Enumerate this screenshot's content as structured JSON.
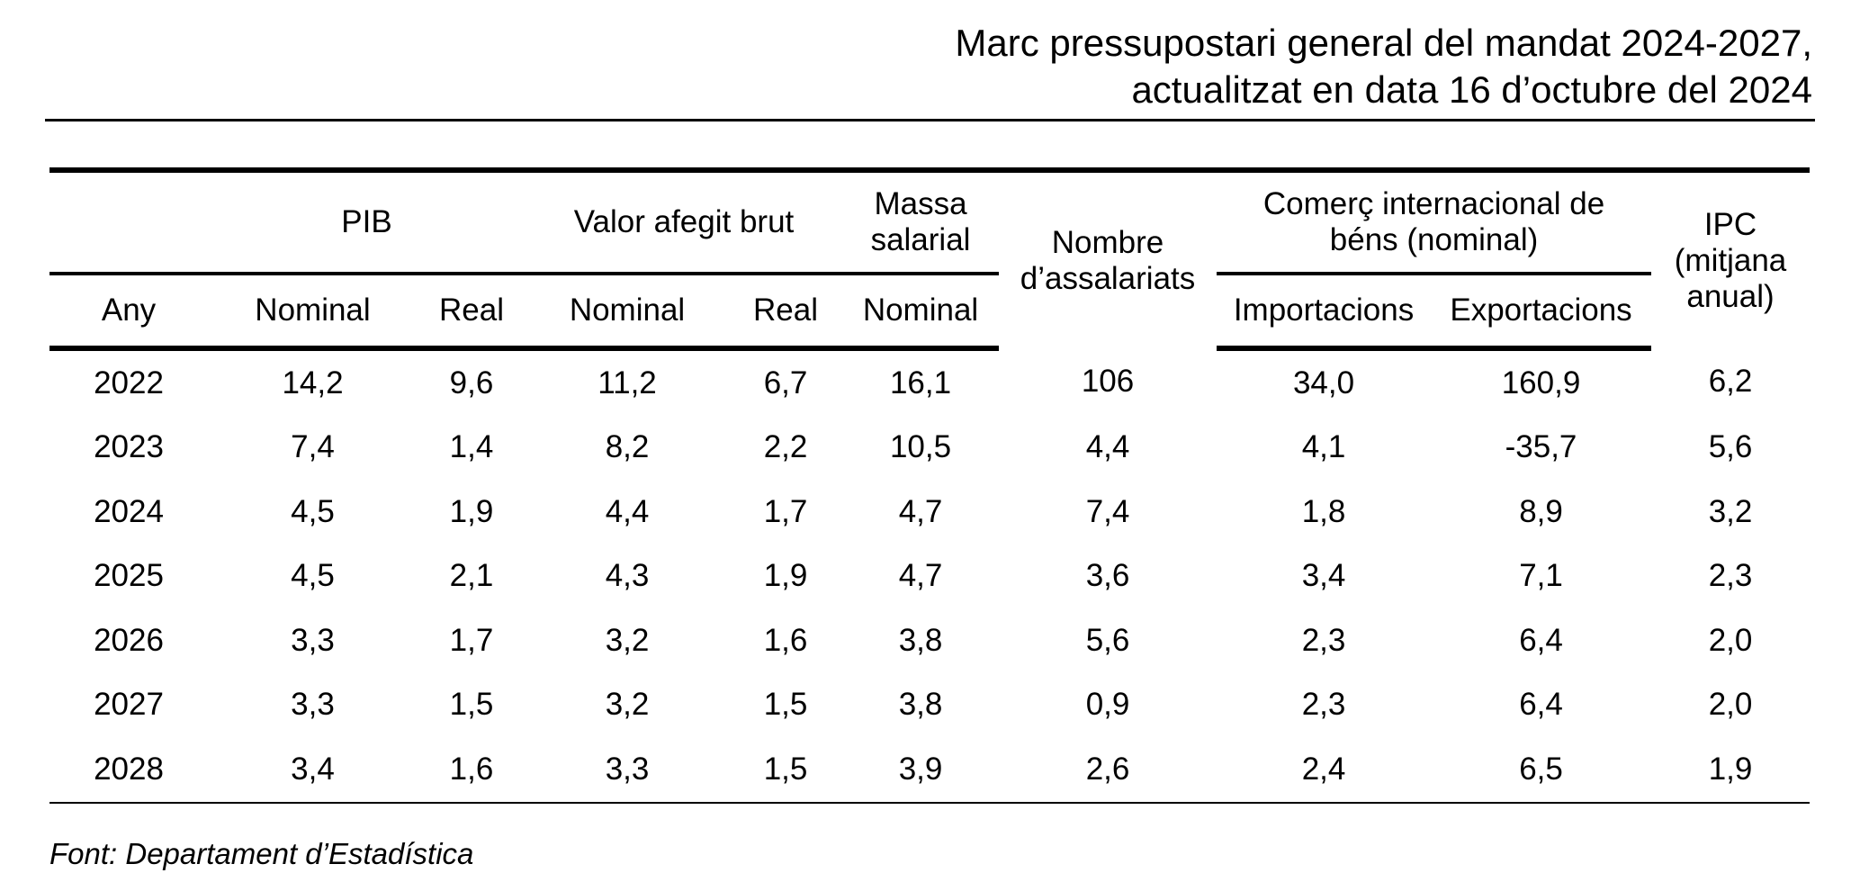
{
  "title": {
    "line1": "Marc pressupostari general del mandat 2024-2027,",
    "line2": "actualitzat en data 16 d’octubre del 2024"
  },
  "table": {
    "groups": {
      "pib": "PIB",
      "vab": "Valor afegit brut",
      "massa_1": "Massa",
      "massa_2": "salarial",
      "nombre_1": "Nombre",
      "nombre_2": "d’assalariats",
      "comerc_1": "Comerç internacional de",
      "comerc_2": "béns (nominal)",
      "ipc_1": "IPC",
      "ipc_2": "(mitjana",
      "ipc_3": "anual)"
    },
    "subheaders": [
      "Any",
      "Nominal",
      "Real",
      "Nominal",
      "Real",
      "Nominal",
      "Importacions",
      "Exportacions"
    ],
    "rows": [
      [
        "2022",
        "14,2",
        "9,6",
        "11,2",
        "6,7",
        "16,1",
        "106",
        "34,0",
        "160,9",
        "6,2"
      ],
      [
        "2023",
        "7,4",
        "1,4",
        "8,2",
        "2,2",
        "10,5",
        "4,4",
        "4,1",
        "-35,7",
        "5,6"
      ],
      [
        "2024",
        "4,5",
        "1,9",
        "4,4",
        "1,7",
        "4,7",
        "7,4",
        "1,8",
        "8,9",
        "3,2"
      ],
      [
        "2025",
        "4,5",
        "2,1",
        "4,3",
        "1,9",
        "4,7",
        "3,6",
        "3,4",
        "7,1",
        "2,3"
      ],
      [
        "2026",
        "3,3",
        "1,7",
        "3,2",
        "1,6",
        "3,8",
        "5,6",
        "2,3",
        "6,4",
        "2,0"
      ],
      [
        "2027",
        "3,3",
        "1,5",
        "3,2",
        "1,5",
        "3,8",
        "0,9",
        "2,3",
        "6,4",
        "2,0"
      ],
      [
        "2028",
        "3,4",
        "1,6",
        "3,3",
        "1,5",
        "3,9",
        "2,6",
        "2,4",
        "6,5",
        "1,9"
      ]
    ]
  },
  "footnote": "Font: Departament d’Estadística"
}
